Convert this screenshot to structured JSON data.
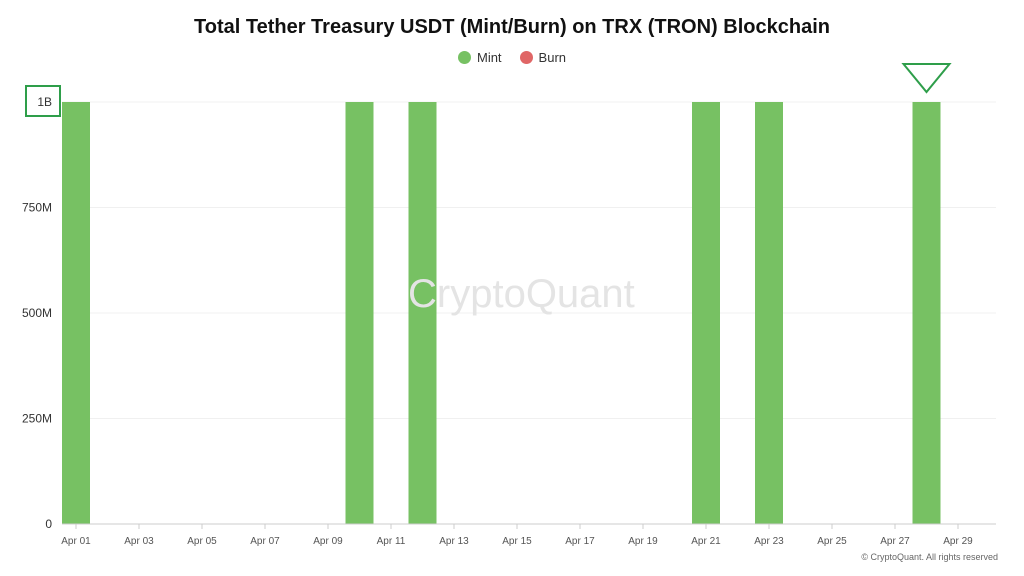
{
  "chart_data": {
    "type": "bar",
    "title": "Total Tether Treasury USDT (Mint/Burn) on TRX (TRON) Blockchain",
    "xlabel": "",
    "ylabel": "",
    "ylim": [
      0,
      1000000000
    ],
    "y_ticks": [
      {
        "value": 0,
        "label": "0"
      },
      {
        "value": 250000000,
        "label": "250M"
      },
      {
        "value": 500000000,
        "label": "500M"
      },
      {
        "value": 750000000,
        "label": "750M"
      },
      {
        "value": 1000000000,
        "label": "1B"
      }
    ],
    "x_ticks": [
      "Apr 01",
      "Apr 03",
      "Apr 05",
      "Apr 07",
      "Apr 09",
      "Apr 11",
      "Apr 13",
      "Apr 15",
      "Apr 17",
      "Apr 19",
      "Apr 21",
      "Apr 23",
      "Apr 25",
      "Apr 27",
      "Apr 29"
    ],
    "grid": true,
    "legend_position": "top-center",
    "series": [
      {
        "name": "Mint",
        "color": "#77c163",
        "points": [
          {
            "date": "Apr 01",
            "value": 1000000000
          },
          {
            "date": "Apr 10",
            "value": 1000000000
          },
          {
            "date": "Apr 12",
            "value": 1000000000
          },
          {
            "date": "Apr 21",
            "value": 1000000000
          },
          {
            "date": "Apr 23",
            "value": 1000000000
          },
          {
            "date": "Apr 28",
            "value": 1000000000
          }
        ]
      },
      {
        "name": "Burn",
        "color": "#e06666",
        "points": []
      }
    ],
    "annotations": {
      "highlight_tick": "1B",
      "highlight_color": "#2e9e4a",
      "marker_shape": "down-triangle",
      "marker_date": "Apr 28"
    }
  },
  "watermark": "CryptoQuant",
  "copyright": "© CryptoQuant. All rights reserved"
}
